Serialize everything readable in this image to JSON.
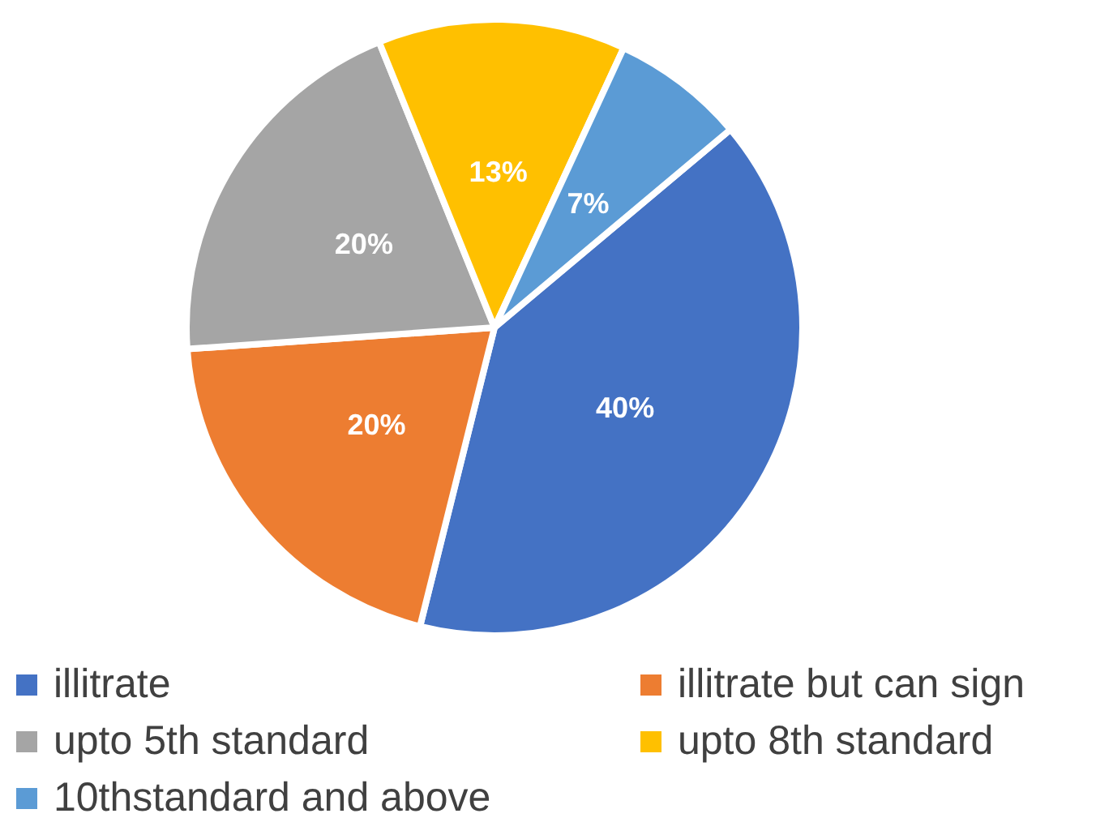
{
  "chart_data": {
    "type": "pie",
    "categories": [
      "illitrate",
      "illitrate but can sign",
      "upto 5th standard",
      "upto 8th standard",
      "10thstandard and above"
    ],
    "values": [
      40,
      20,
      20,
      13,
      7
    ],
    "colors": [
      "#4472c4",
      "#ed7d31",
      "#a5a5a5",
      "#ffc000",
      "#5b9bd5"
    ],
    "value_labels": [
      "40%",
      "20%",
      "20%",
      "13%",
      "7%"
    ],
    "legend": "bottom"
  }
}
